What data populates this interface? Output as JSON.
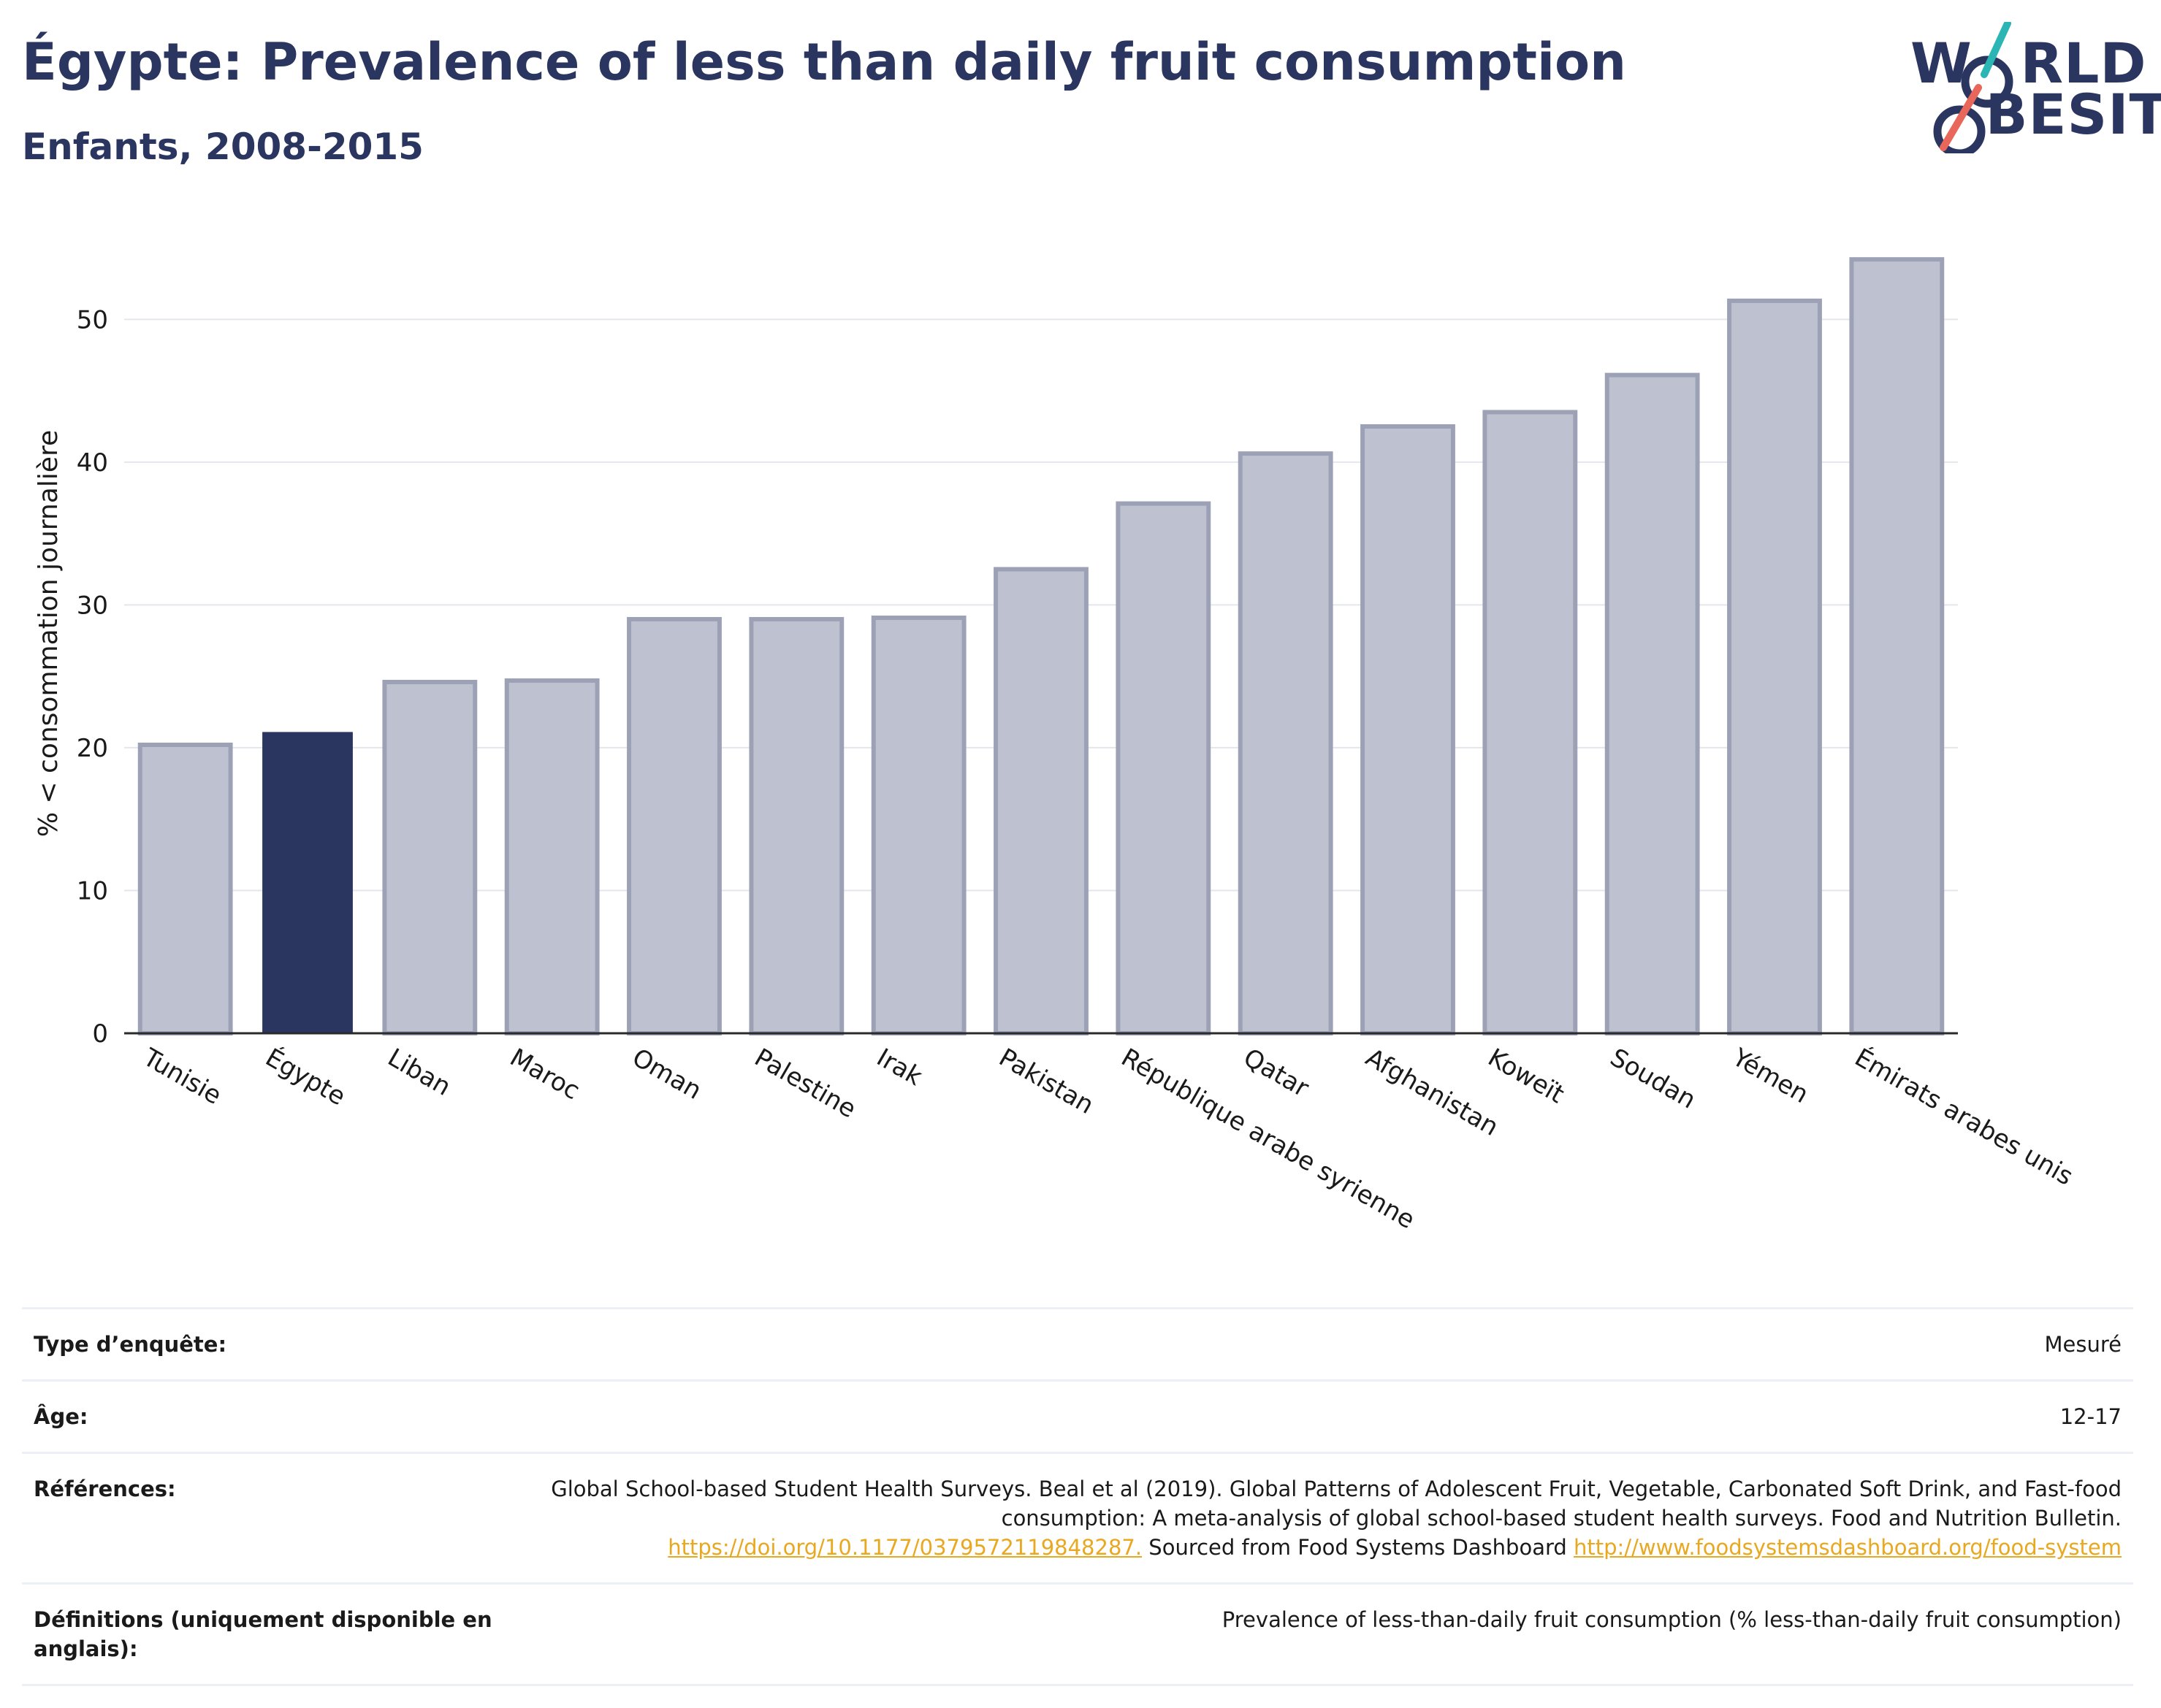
{
  "title": "Égypte: Prevalence of less than daily fruit consumption",
  "subtitle": "Enfants, 2008-2015",
  "logo": {
    "line1": "WORLD",
    "line2": "OBESITY",
    "accent_teal": "#2bb5b5",
    "accent_red": "#e8665a"
  },
  "colors": {
    "navy": "#2a3560",
    "bar": "#bec2d0",
    "bar_stroke": "#9ca1b6",
    "highlight": "#2a3560"
  },
  "chart_data": {
    "type": "bar",
    "ylabel": "% < consommation journalière",
    "ylim": [
      0,
      56
    ],
    "yticks": [
      0,
      10,
      20,
      30,
      40,
      50
    ],
    "grid": true,
    "categories": [
      "Tunisie",
      "Égypte",
      "Liban",
      "Maroc",
      "Oman",
      "Palestine",
      "Irak",
      "Pakistan",
      "République arabe syrienne",
      "Qatar",
      "Afghanistan",
      "Koweït",
      "Soudan",
      "Yémen",
      "Émirats arabes unis"
    ],
    "values": [
      20.2,
      21.1,
      24.6,
      24.7,
      29.0,
      29.0,
      29.1,
      32.5,
      37.1,
      40.6,
      42.5,
      43.5,
      46.1,
      51.3,
      54.2
    ],
    "highlight": "Égypte"
  },
  "meta": [
    {
      "label": "Type d’enquête:",
      "value": "Mesuré"
    },
    {
      "label": "Âge:",
      "value": "12-17"
    },
    {
      "label": "Références:",
      "value_text": "Global School-based Student Health Surveys. Beal et al (2019). Global Patterns of Adolescent Fruit, Vegetable, Carbonated Soft Drink, and Fast-food consumption: A meta-analysis of global school-based student health surveys. Food and Nutrition Bulletin.",
      "link1": "https://doi.org/10.1177/0379572119848287.",
      "mid_text": " Sourced from Food Systems Dashboard ",
      "link2": "http://www.foodsystemsdashboard.org/food-system"
    },
    {
      "label": "Définitions (uniquement disponible en anglais):",
      "value": "Prevalence of less-than-daily fruit consumption (% less-than-daily fruit consumption)"
    }
  ]
}
